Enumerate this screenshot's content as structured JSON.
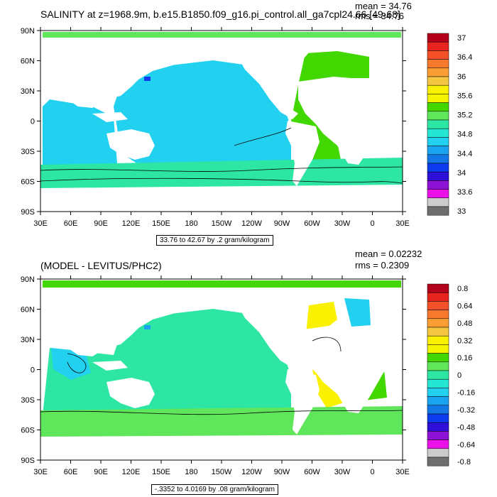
{
  "panel1": {
    "title": "SALINITY at z=1968.9m, b.e15.B1850.f09_g16.pi_control.all_ga7cpl24.66 [49-68]",
    "mean": "mean = 34.76",
    "rms": "rms = 34.76",
    "note": "33.76 to 42.67 by .2 gram/kilogram",
    "colorbar": {
      "labels": [
        "37",
        "36.4",
        "36",
        "35.6",
        "35.2",
        "34.8",
        "34.4",
        "34",
        "33.6",
        "33"
      ],
      "colors": [
        "#b3001b",
        "#e8241f",
        "#f4502a",
        "#f7792e",
        "#fa9e33",
        "#f5c641",
        "#faf100",
        "#f4f400",
        "#43d700",
        "#60e65a",
        "#2ee6a4",
        "#25e5d3",
        "#22d0f0",
        "#1aa4f0",
        "#1477e6",
        "#0d3cf0",
        "#2f10d8",
        "#8e12d6",
        "#ea12e8",
        "#cccccc",
        "#6e6e6e"
      ]
    }
  },
  "panel2": {
    "title": "(MODEL - LEVITUS/PHC2)",
    "mean": "mean = 0.02232",
    "rms": "rms = 0.2309",
    "note": "-.3352 to 4.0169 by .08 gram/kilogram",
    "colorbar": {
      "labels": [
        "0.8",
        "0.64",
        "0.48",
        "0.32",
        "0.16",
        "0",
        "-0.16",
        "-0.32",
        "-0.48",
        "-0.64",
        "-0.8"
      ],
      "colors": [
        "#b3001b",
        "#e8241f",
        "#f4502a",
        "#f7792e",
        "#fa9e33",
        "#f5c641",
        "#faf100",
        "#f4f400",
        "#43d700",
        "#60e65a",
        "#2ee6a4",
        "#25e5d3",
        "#22d0f0",
        "#1aa4f0",
        "#1477e6",
        "#0d3cf0",
        "#2f10d8",
        "#8e12d6",
        "#ea12e8",
        "#cccccc",
        "#6e6e6e"
      ]
    }
  },
  "axes": {
    "lat_labels": [
      "90N",
      "60N",
      "30N",
      "0",
      "30S",
      "60S",
      "90S"
    ],
    "lon_labels": [
      "30E",
      "60E",
      "90E",
      "120E",
      "150E",
      "180",
      "150W",
      "120W",
      "90W",
      "60W",
      "30W",
      "0",
      "30E"
    ]
  }
}
